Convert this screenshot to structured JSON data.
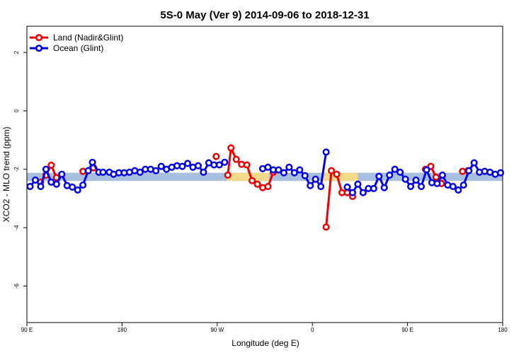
{
  "chart_data": {
    "type": "line",
    "title": "5S-0 May (Ver 9)   2014-09-06 to 2018-12-31",
    "x_label": "Longitude (deg E)",
    "y_label": "XCO2 - MLO trend (ppm)",
    "xlim": [
      90,
      540
    ],
    "ylim": [
      -7.25,
      2.9
    ],
    "xticks": [
      {
        "value": 90,
        "label": "90 E"
      },
      {
        "value": 180,
        "label": "180"
      },
      {
        "value": 270,
        "label": "90 W"
      },
      {
        "value": 360,
        "label": "0"
      },
      {
        "value": 450,
        "label": "90 E"
      },
      {
        "value": 540,
        "label": "180"
      }
    ],
    "yticks": [
      -6,
      -4,
      -2,
      0,
      2
    ],
    "band": [
      -2.4,
      -2.12
    ],
    "band_color": "#a8bfe0",
    "land_spans": [
      [
        279,
        319
      ],
      [
        369,
        403
      ]
    ],
    "land_span_color": "#f5d98a",
    "legend": "top-left",
    "series": [
      {
        "name": "Land (Nadir&Glint)",
        "color": "#ee0000",
        "x": [
          103,
          108,
          113,
          118,
          120,
          143,
          148,
          153,
          160,
          269,
          272,
          280,
          283,
          288,
          293,
          298,
          303,
          308,
          313,
          318,
          323,
          330,
          373,
          378,
          383,
          388,
          393,
          398,
          400,
          467,
          472,
          477,
          482,
          490,
          502,
          507
        ],
        "values": [
          -2.44,
          -2.2,
          -1.86,
          -2.29,
          null,
          -2.07,
          -2.05,
          -1.95,
          null,
          -1.56,
          null,
          -2.2,
          -1.27,
          -1.66,
          -1.83,
          -1.85,
          -2.39,
          -2.51,
          -2.63,
          -2.59,
          -2.1,
          null,
          -3.98,
          -2.05,
          -2.17,
          -2.8,
          -2.8,
          -2.93,
          null,
          -2.0,
          -1.9,
          -2.27,
          -2.49,
          null,
          -2.07,
          -2.05
        ]
      },
      {
        "name": "Ocean (Glint)",
        "color": "#0000ee",
        "x": [
          93,
          98,
          103,
          108,
          113,
          118,
          123,
          128,
          133,
          138,
          143,
          148,
          152,
          158,
          162,
          168,
          172,
          177,
          182,
          187,
          192,
          197,
          202,
          207,
          212,
          217,
          222,
          227,
          232,
          237,
          242,
          247,
          252,
          257,
          262,
          267,
          272,
          277,
          290,
          313,
          318,
          323,
          328,
          333,
          338,
          343,
          348,
          353,
          358,
          363,
          368,
          373,
          380,
          393,
          398,
          403,
          408,
          413,
          418,
          423,
          428,
          433,
          438,
          443,
          448,
          453,
          458,
          463,
          468,
          473,
          478,
          483,
          488,
          493,
          498,
          503,
          508,
          513,
          518,
          523,
          528,
          533,
          538
        ],
        "values": [
          -2.59,
          -2.37,
          -2.59,
          -2.0,
          -2.44,
          -2.51,
          -2.17,
          -2.56,
          -2.61,
          -2.71,
          -2.54,
          -2.05,
          -1.76,
          -2.1,
          -2.1,
          -2.1,
          -2.17,
          -2.12,
          -2.12,
          -2.1,
          -2.05,
          -2.1,
          -2.0,
          -2.0,
          -2.05,
          -1.9,
          -2.0,
          -1.93,
          -1.88,
          -1.9,
          -1.8,
          -1.93,
          -1.88,
          -2.1,
          -1.78,
          -1.85,
          -1.85,
          -1.76,
          null,
          -1.98,
          -1.93,
          -2.02,
          -2.02,
          -2.12,
          -1.93,
          -2.12,
          -2.02,
          -2.22,
          -2.56,
          -2.34,
          -2.59,
          -1.41,
          null,
          -2.61,
          -2.8,
          -2.51,
          -2.8,
          -2.66,
          -2.66,
          -2.24,
          -2.63,
          -2.2,
          -2.0,
          -2.1,
          -2.34,
          -2.59,
          -2.37,
          -2.59,
          -2.02,
          -2.46,
          -2.49,
          -2.2,
          -2.54,
          -2.59,
          -2.71,
          -2.54,
          -2.05,
          -1.78,
          -2.1,
          -2.07,
          -2.1,
          -2.17,
          -2.12
        ]
      }
    ]
  }
}
